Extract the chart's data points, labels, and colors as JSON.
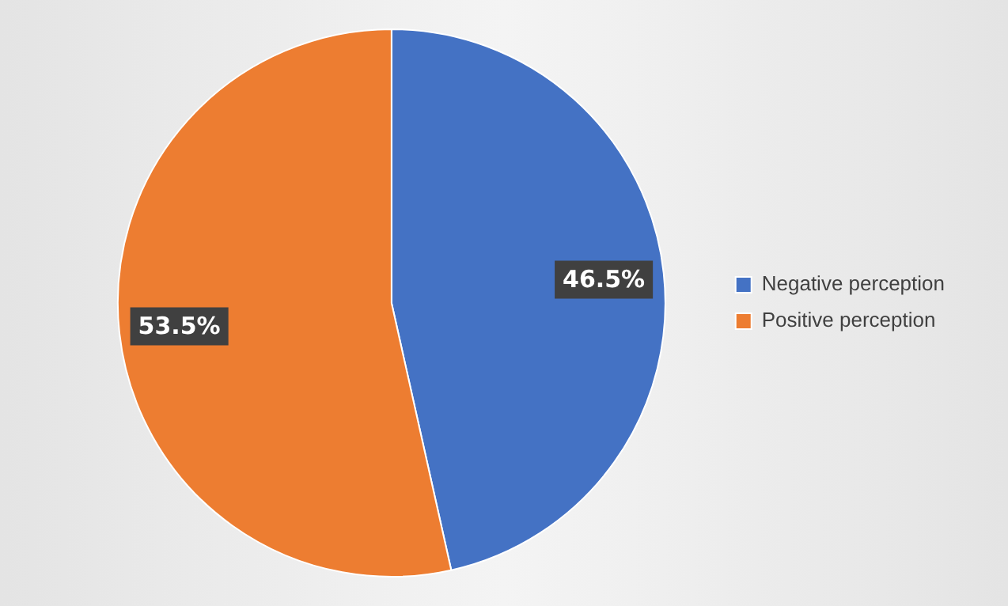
{
  "chart_data": {
    "type": "pie",
    "categories": [
      "Negative perception",
      "Positive perception"
    ],
    "values": [
      46.5,
      53.5
    ],
    "colors": [
      "#4472c4",
      "#ed7d31"
    ],
    "value_labels": [
      "46.5%",
      "53.5%"
    ],
    "legend": "right"
  }
}
